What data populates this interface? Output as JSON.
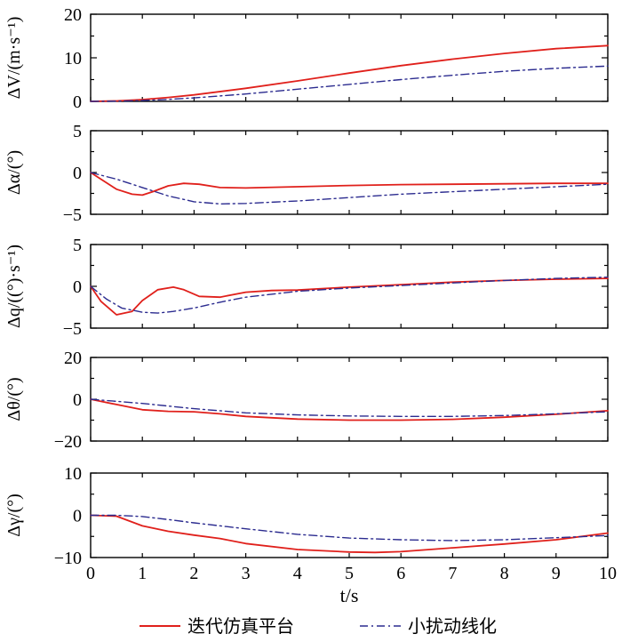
{
  "chart_data": [
    {
      "type": "line",
      "ylabel": "ΔV/(m·s⁻¹)",
      "ylim": [
        0,
        20
      ],
      "yticks": [
        "20",
        "10",
        "0"
      ],
      "xlim": [
        0,
        10
      ],
      "series": [
        {
          "name": "迭代仿真平台",
          "color": "#e0201b",
          "dash": "solid",
          "x": [
            0,
            0.5,
            1,
            1.5,
            2,
            3,
            4,
            5,
            6,
            7,
            8,
            9,
            10
          ],
          "y": [
            0,
            0.1,
            0.4,
            0.9,
            1.5,
            3.0,
            4.7,
            6.5,
            8.2,
            9.7,
            11.0,
            12.1,
            12.8
          ]
        },
        {
          "name": "小扰动线化",
          "color": "#2b2b8f",
          "dash": "dashdot",
          "x": [
            0,
            0.5,
            1,
            1.5,
            2,
            3,
            4,
            5,
            6,
            7,
            8,
            9,
            10
          ],
          "y": [
            0,
            0.05,
            0.2,
            0.45,
            0.8,
            1.7,
            2.8,
            3.9,
            5.0,
            6.0,
            6.9,
            7.6,
            8.1
          ]
        }
      ]
    },
    {
      "type": "line",
      "ylabel": "Δα/(°)",
      "ylim": [
        -5,
        5
      ],
      "yticks": [
        "5",
        "0",
        "−5"
      ],
      "xlim": [
        0,
        10
      ],
      "series": [
        {
          "name": "迭代仿真平台",
          "color": "#e0201b",
          "dash": "solid",
          "x": [
            0,
            0.2,
            0.5,
            0.8,
            1,
            1.2,
            1.5,
            1.8,
            2.1,
            2.5,
            3,
            4,
            5,
            6,
            7,
            8,
            9,
            10
          ],
          "y": [
            0,
            -0.8,
            -2.0,
            -2.6,
            -2.7,
            -2.3,
            -1.6,
            -1.3,
            -1.4,
            -1.8,
            -1.85,
            -1.7,
            -1.55,
            -1.45,
            -1.4,
            -1.35,
            -1.3,
            -1.3
          ]
        },
        {
          "name": "小扰动线化",
          "color": "#2b2b8f",
          "dash": "dashdot",
          "x": [
            0,
            0.5,
            1,
            1.5,
            2,
            2.5,
            3,
            4,
            5,
            6,
            7,
            8,
            9,
            10
          ],
          "y": [
            0,
            -0.8,
            -1.8,
            -2.8,
            -3.5,
            -3.75,
            -3.7,
            -3.4,
            -3.0,
            -2.6,
            -2.3,
            -2.0,
            -1.7,
            -1.4
          ]
        }
      ]
    },
    {
      "type": "line",
      "ylabel": "Δq/((°)·s⁻¹)",
      "ylim": [
        -5,
        5
      ],
      "yticks": [
        "5",
        "0",
        "−5"
      ],
      "xlim": [
        0,
        10
      ],
      "series": [
        {
          "name": "迭代仿真平台",
          "color": "#e0201b",
          "dash": "solid",
          "x": [
            0,
            0.2,
            0.5,
            0.8,
            1,
            1.3,
            1.6,
            1.8,
            2.1,
            2.5,
            3,
            3.5,
            4,
            5,
            6,
            7,
            8,
            9,
            10
          ],
          "y": [
            0,
            -1.8,
            -3.4,
            -3.0,
            -1.7,
            -0.4,
            -0.1,
            -0.4,
            -1.2,
            -1.3,
            -0.7,
            -0.5,
            -0.45,
            -0.1,
            0.2,
            0.5,
            0.7,
            0.85,
            0.95
          ]
        },
        {
          "name": "小扰动线化",
          "color": "#2b2b8f",
          "dash": "dashdot",
          "x": [
            0,
            0.3,
            0.6,
            1,
            1.3,
            1.6,
            2,
            2.5,
            3,
            4,
            5,
            6,
            7,
            8,
            9,
            10
          ],
          "y": [
            0,
            -1.5,
            -2.6,
            -3.1,
            -3.2,
            -3.0,
            -2.6,
            -1.9,
            -1.3,
            -0.6,
            -0.2,
            0.1,
            0.4,
            0.7,
            0.95,
            1.1
          ]
        }
      ]
    },
    {
      "type": "line",
      "ylabel": "Δθ/(°)",
      "ylim": [
        -20,
        20
      ],
      "yticks": [
        "20",
        "0",
        "−20"
      ],
      "xlim": [
        0,
        10
      ],
      "series": [
        {
          "name": "迭代仿真平台",
          "color": "#e0201b",
          "dash": "solid",
          "x": [
            0,
            0.5,
            1,
            1.5,
            2,
            2.5,
            3,
            4,
            5,
            6,
            7,
            8,
            9,
            10
          ],
          "y": [
            0,
            -2.5,
            -5.0,
            -5.8,
            -6.0,
            -7.0,
            -8.2,
            -9.5,
            -10.0,
            -10.0,
            -9.6,
            -8.6,
            -7.2,
            -5.5
          ]
        },
        {
          "name": "小扰动线化",
          "color": "#2b2b8f",
          "dash": "dashdot",
          "x": [
            0,
            1,
            2,
            3,
            4,
            5,
            6,
            7,
            8,
            9,
            10
          ],
          "y": [
            0,
            -2.0,
            -4.5,
            -6.5,
            -7.5,
            -8.0,
            -8.2,
            -8.2,
            -7.8,
            -7.0,
            -6.0
          ]
        }
      ]
    },
    {
      "type": "line",
      "ylabel": "Δγ/(°)",
      "ylim": [
        -10,
        10
      ],
      "yticks": [
        "10",
        "0",
        "−10"
      ],
      "xlim": [
        0,
        10
      ],
      "xticks": [
        "0",
        "1",
        "2",
        "3",
        "4",
        "5",
        "6",
        "7",
        "8",
        "9",
        "10"
      ],
      "xlabel": "t/s",
      "series": [
        {
          "name": "迭代仿真平台",
          "color": "#e0201b",
          "dash": "solid",
          "x": [
            0,
            0.5,
            1,
            1.5,
            2,
            2.5,
            3,
            4,
            5,
            5.5,
            6,
            7,
            8,
            9,
            10
          ],
          "y": [
            0,
            -0.2,
            -2.5,
            -3.8,
            -4.7,
            -5.5,
            -6.7,
            -8.1,
            -8.7,
            -8.8,
            -8.6,
            -7.7,
            -6.8,
            -5.8,
            -4.2
          ]
        },
        {
          "name": "小扰动线化",
          "color": "#2b2b8f",
          "dash": "dashdot",
          "x": [
            0,
            0.5,
            1,
            1.5,
            2,
            3,
            4,
            5,
            6,
            7,
            8,
            9,
            10
          ],
          "y": [
            0,
            0,
            -0.3,
            -1.0,
            -1.8,
            -3.2,
            -4.5,
            -5.4,
            -5.8,
            -6.0,
            -5.8,
            -5.3,
            -4.8
          ]
        }
      ]
    }
  ],
  "legend": [
    {
      "label": "迭代仿真平台",
      "color": "#e0201b",
      "dash": "solid"
    },
    {
      "label": "小扰动线化",
      "color": "#2b2b8f",
      "dash": "dashdot"
    }
  ]
}
